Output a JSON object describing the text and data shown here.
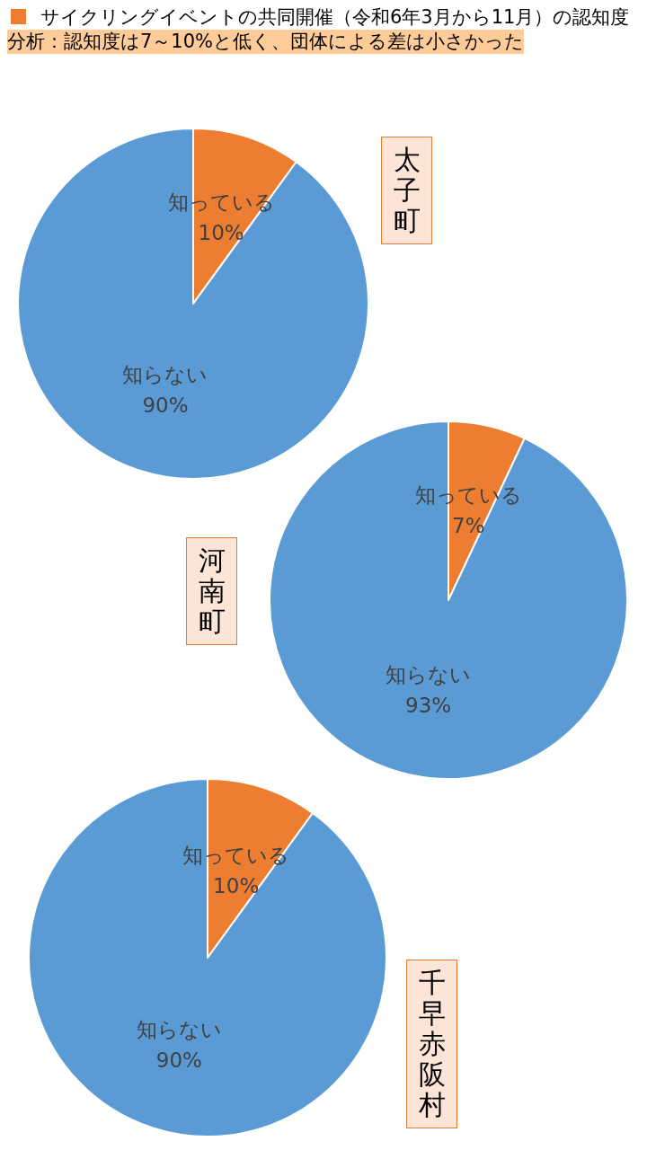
{
  "chart_data": [
    {
      "type": "pie",
      "title": "太子町",
      "annotations": [
        "サイクリングイベントの共同開催（令和6年3月から11月）の認知度",
        "分析：認知度は7～10%と低く、団体による差は小さかった"
      ],
      "categories": [
        "知っている",
        "知らない"
      ],
      "values": [
        10,
        90
      ],
      "colors": [
        "#ed7d31",
        "#5b9bd5"
      ],
      "value_labels": [
        "10%",
        "90%"
      ]
    },
    {
      "type": "pie",
      "title": "河南町",
      "categories": [
        "知っている",
        "知らない"
      ],
      "values": [
        7,
        93
      ],
      "colors": [
        "#ed7d31",
        "#5b9bd5"
      ],
      "value_labels": [
        "7%",
        "93%"
      ]
    },
    {
      "type": "pie",
      "title": "千早赤阪村",
      "categories": [
        "知っている",
        "知らない"
      ],
      "values": [
        10,
        90
      ],
      "colors": [
        "#ed7d31",
        "#5b9bd5"
      ],
      "value_labels": [
        "10%",
        "90%"
      ]
    }
  ]
}
